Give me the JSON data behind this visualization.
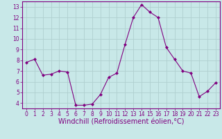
{
  "x": [
    0,
    1,
    2,
    3,
    4,
    5,
    6,
    7,
    8,
    9,
    10,
    11,
    12,
    13,
    14,
    15,
    16,
    17,
    18,
    19,
    20,
    21,
    22,
    23
  ],
  "y": [
    7.8,
    8.1,
    6.6,
    6.7,
    7.0,
    6.9,
    3.8,
    3.8,
    3.9,
    4.8,
    6.4,
    6.8,
    9.5,
    12.0,
    13.2,
    12.5,
    12.0,
    9.2,
    8.1,
    7.0,
    6.8,
    4.6,
    5.1,
    5.9
  ],
  "line_color": "#800080",
  "marker": "D",
  "marker_size": 2,
  "bg_color": "#c8e8e8",
  "grid_color": "#b0d0d0",
  "xlabel": "Windchill (Refroidissement éolien,°C)",
  "xlabel_color": "#800080",
  "tick_color": "#800080",
  "axis_color": "#800080",
  "ylim": [
    3.5,
    13.5
  ],
  "xlim": [
    -0.5,
    23.5
  ],
  "yticks": [
    4,
    5,
    6,
    7,
    8,
    9,
    10,
    11,
    12,
    13
  ],
  "xticks": [
    0,
    1,
    2,
    3,
    4,
    5,
    6,
    7,
    8,
    9,
    10,
    11,
    12,
    13,
    14,
    15,
    16,
    17,
    18,
    19,
    20,
    21,
    22,
    23
  ],
  "tick_fontsize": 5.5,
  "xlabel_fontsize": 7.0,
  "line_width": 0.8
}
